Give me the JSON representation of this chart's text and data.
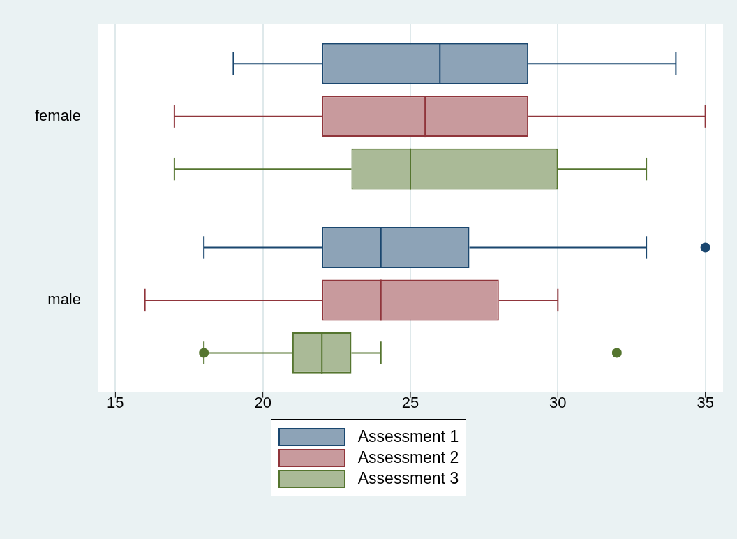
{
  "chart_data": {
    "type": "box",
    "orientation": "horizontal",
    "categories": [
      "female",
      "male"
    ],
    "series": [
      {
        "name": "Assessment 1",
        "color": "#1a476f",
        "boxes": [
          {
            "low": 19,
            "q1": 22,
            "median": 26,
            "q3": 29,
            "high": 34
          },
          {
            "low": 18,
            "q1": 22,
            "median": 24,
            "q3": 27,
            "high": 33,
            "outliers": [
              35
            ]
          }
        ]
      },
      {
        "name": "Assessment 2",
        "color": "#90353b",
        "boxes": [
          {
            "low": 17,
            "q1": 22,
            "median": 25.5,
            "q3": 29,
            "high": 35
          },
          {
            "low": 16,
            "q1": 22,
            "median": 24,
            "q3": 28,
            "high": 30
          }
        ]
      },
      {
        "name": "Assessment 3",
        "color": "#55752f",
        "boxes": [
          {
            "low": 17,
            "q1": 23,
            "median": 25,
            "q3": 30,
            "high": 33
          },
          {
            "low": 18,
            "q1": 21,
            "median": 22,
            "q3": 23,
            "high": 24,
            "outliers": [
              18,
              32
            ]
          }
        ]
      }
    ],
    "xlim": [
      14.4,
      35.6
    ],
    "xticks": [
      15,
      20,
      25,
      30,
      35
    ],
    "grid": "x",
    "legend": "bottom",
    "marker": "circle"
  }
}
